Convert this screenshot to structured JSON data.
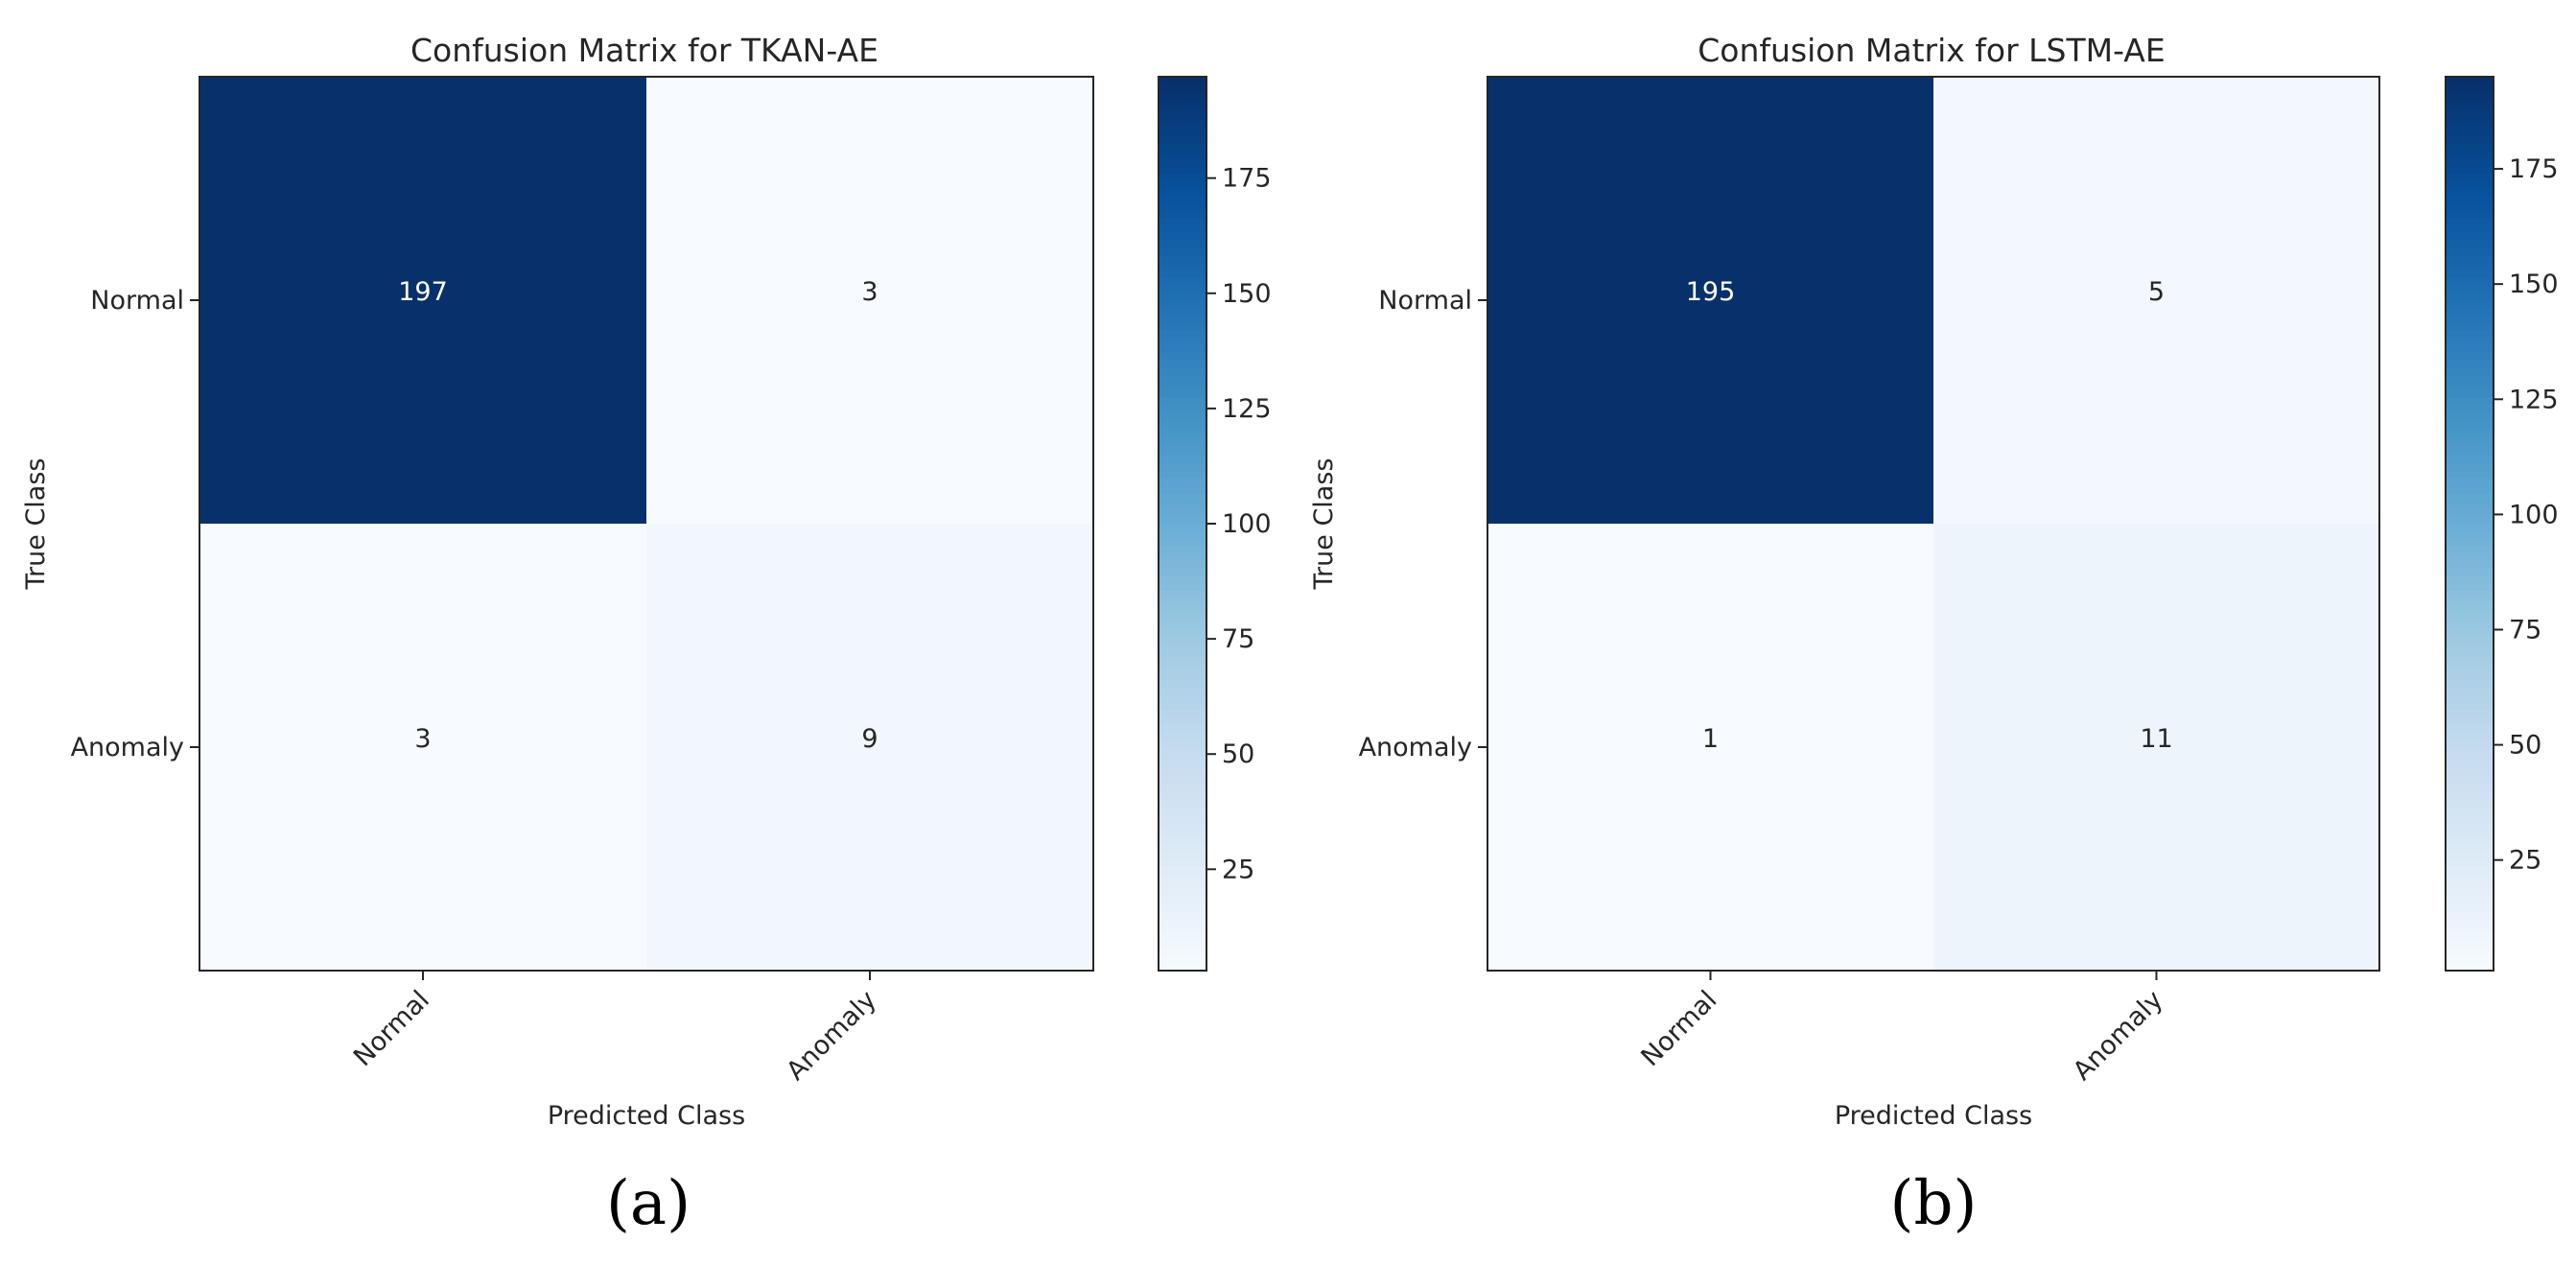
{
  "chart_data": [
    {
      "type": "heatmap",
      "title": "Confusion Matrix for TKAN-AE",
      "xlabel": "Predicted Class",
      "ylabel": "True Class",
      "x_categories": [
        "Normal",
        "Anomaly"
      ],
      "y_categories": [
        "Normal",
        "Anomaly"
      ],
      "matrix": [
        [
          197,
          3
        ],
        [
          3,
          9
        ]
      ],
      "colorbar": {
        "min": 3,
        "max": 197,
        "ticks": [
          25,
          50,
          75,
          100,
          125,
          150,
          175
        ],
        "colormap": "Blues"
      },
      "caption": "(a)"
    },
    {
      "type": "heatmap",
      "title": "Confusion Matrix for LSTM-AE",
      "xlabel": "Predicted Class",
      "ylabel": "True Class",
      "x_categories": [
        "Normal",
        "Anomaly"
      ],
      "y_categories": [
        "Normal",
        "Anomaly"
      ],
      "matrix": [
        [
          195,
          5
        ],
        [
          1,
          11
        ]
      ],
      "colorbar": {
        "min": 1,
        "max": 195,
        "ticks": [
          25,
          50,
          75,
          100,
          125,
          150,
          175
        ],
        "colormap": "Blues"
      },
      "caption": "(b)"
    }
  ],
  "colors": {
    "blues_low": "#f7fbff",
    "blues_high": "#08306b",
    "text_dark": "#262626",
    "text_light": "#ffffff"
  }
}
